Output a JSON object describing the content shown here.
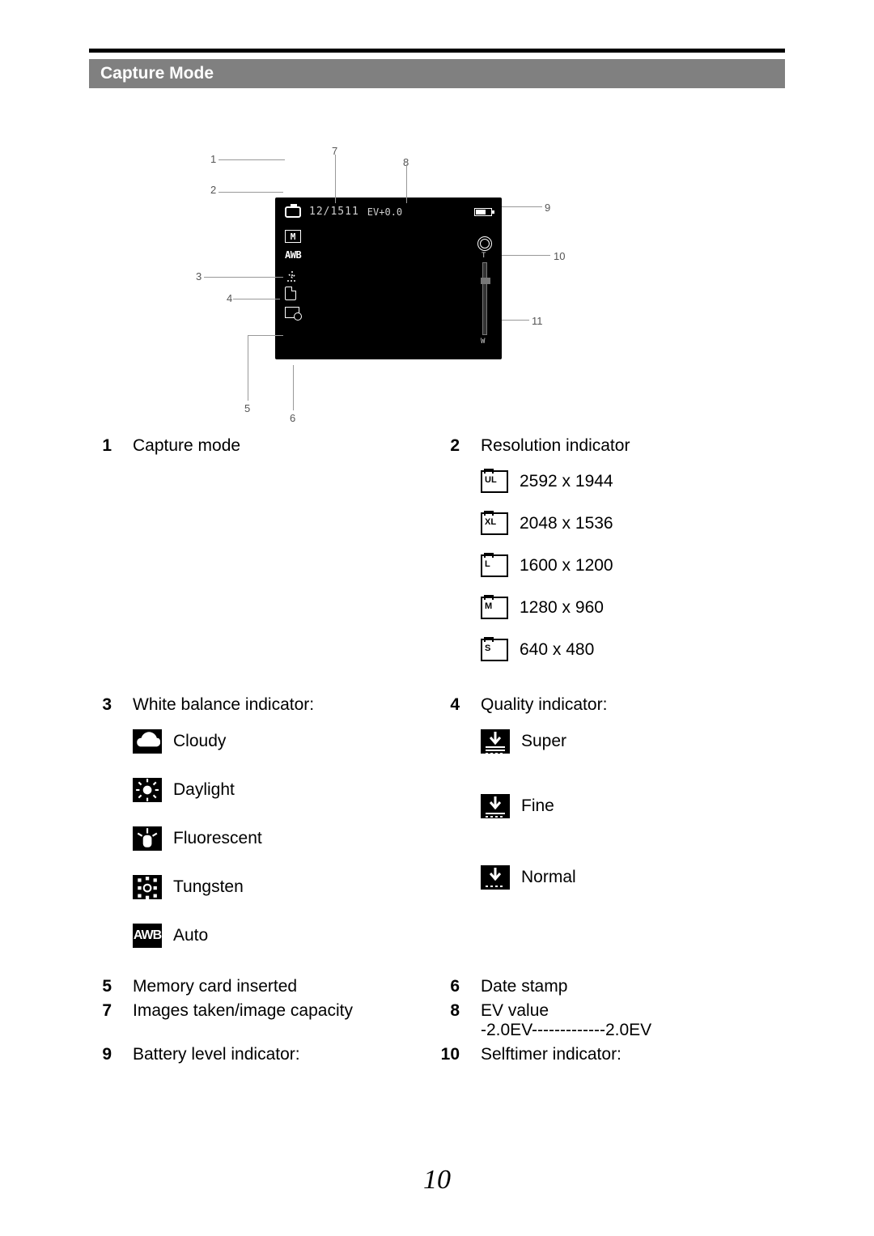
{
  "heading": "Capture Mode",
  "diagram": {
    "counter": "12/1511",
    "ev_text": "EV+0.0",
    "callouts": [
      "1",
      "2",
      "3",
      "4",
      "5",
      "6",
      "7",
      "8",
      "9",
      "10",
      "11"
    ]
  },
  "legend": {
    "item1": {
      "num": "1",
      "label": "Capture mode"
    },
    "item2": {
      "num": "2",
      "label": "Resolution indicator",
      "resolutions": [
        {
          "code": "UL",
          "text": "2592 x 1944"
        },
        {
          "code": "XL",
          "text": "2048 x 1536"
        },
        {
          "code": "L",
          "text": "1600 x 1200"
        },
        {
          "code": "M",
          "text": "1280 x 960"
        },
        {
          "code": "S",
          "text": "640 x 480"
        }
      ]
    },
    "item3": {
      "num": "3",
      "label": "White balance indicator:",
      "wb": [
        {
          "icon": "cloudy",
          "text": "Cloudy"
        },
        {
          "icon": "daylight",
          "text": "Daylight"
        },
        {
          "icon": "fluorescent",
          "text": "Fluorescent"
        },
        {
          "icon": "tungsten",
          "text": "Tungsten"
        },
        {
          "icon": "auto",
          "text": "Auto"
        }
      ]
    },
    "item4": {
      "num": "4",
      "label": "Quality indicator:",
      "quality": [
        {
          "icon": "super",
          "text": "Super"
        },
        {
          "icon": "fine",
          "text": "Fine"
        },
        {
          "icon": "normal",
          "text": "Normal"
        }
      ]
    },
    "item5": {
      "num": "5",
      "label": "Memory card inserted"
    },
    "item6": {
      "num": "6",
      "label": "Date stamp"
    },
    "item7": {
      "num": "7",
      "label": "Images taken/image capacity"
    },
    "item8": {
      "num": "8",
      "label": "EV value",
      "sub": "-2.0EV-------------2.0EV"
    },
    "item9": {
      "num": "9",
      "label": "Battery level indicator:"
    },
    "item10": {
      "num": "10",
      "label": "Selftimer indicator:"
    }
  },
  "page_number": "10"
}
